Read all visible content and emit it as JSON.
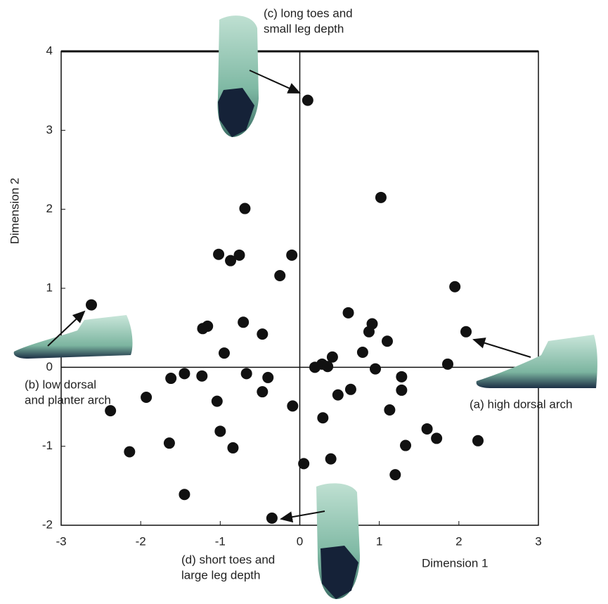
{
  "chart_data": {
    "type": "scatter",
    "xlabel": "Dimension 1",
    "ylabel": "Dimension 2",
    "xlim": [
      -3,
      3
    ],
    "ylim": [
      -2,
      4
    ],
    "xticks": [
      -3,
      -2,
      -1,
      0,
      1,
      2,
      3
    ],
    "yticks": [
      -2,
      -1,
      0,
      1,
      2,
      3,
      4
    ],
    "color": "#111111",
    "x": [
      0.1,
      1.02,
      -0.69,
      -1.02,
      -0.76,
      -0.87,
      -0.1,
      -0.25,
      1.95,
      -2.62,
      0.61,
      0.91,
      0.87,
      -0.71,
      -1.16,
      -1.22,
      -0.47,
      1.1,
      2.09,
      -0.95,
      0.79,
      0.41,
      0.28,
      0.19,
      0.35,
      0.95,
      1.86,
      -1.45,
      -1.62,
      -1.23,
      -0.67,
      -0.4,
      1.28,
      -1.93,
      -0.47,
      0.48,
      0.64,
      1.28,
      -1.04,
      -0.09,
      -2.38,
      1.13,
      0.29,
      -1.0,
      1.6,
      1.72,
      2.24,
      1.33,
      -0.84,
      -1.64,
      -2.14,
      0.05,
      0.39,
      1.2,
      -1.45,
      -0.35
    ],
    "y": [
      3.38,
      2.15,
      2.01,
      1.43,
      1.42,
      1.35,
      1.42,
      1.16,
      1.02,
      0.79,
      0.69,
      0.55,
      0.45,
      0.57,
      0.52,
      0.49,
      0.42,
      0.33,
      0.45,
      0.18,
      0.19,
      0.13,
      0.04,
      0.0,
      0.01,
      -0.02,
      0.04,
      -0.08,
      -0.14,
      -0.11,
      -0.08,
      -0.13,
      -0.12,
      -0.38,
      -0.31,
      -0.35,
      -0.28,
      -0.29,
      -0.43,
      -0.49,
      -0.55,
      -0.54,
      -0.64,
      -0.81,
      -0.78,
      -0.9,
      -0.93,
      -0.99,
      -1.02,
      -0.96,
      -1.07,
      -1.22,
      -1.16,
      -1.36,
      -1.61,
      -1.91
    ],
    "annotations": [
      {
        "lines": [
          "(c) long toes and",
          "small leg depth"
        ]
      },
      {
        "lines": [
          "(b) low dorsal",
          "and planter arch"
        ]
      },
      {
        "lines": [
          "(a) high dorsal arch"
        ]
      },
      {
        "lines": [
          "(d) short toes and",
          "large leg depth"
        ]
      }
    ]
  }
}
